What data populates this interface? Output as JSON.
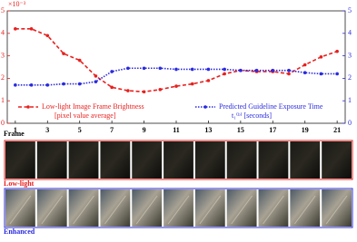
{
  "chart_data": {
    "type": "line",
    "xlabel": "Frame",
    "y_multiplier_label": "×10⁻³",
    "x": [
      1,
      2,
      3,
      4,
      5,
      6,
      7,
      8,
      9,
      10,
      11,
      12,
      13,
      14,
      15,
      16,
      17,
      18,
      19,
      20,
      21
    ],
    "xlim": [
      0.5,
      21.5
    ],
    "xticks": [
      1,
      3,
      5,
      7,
      9,
      11,
      13,
      15,
      17,
      19,
      21
    ],
    "ylim": [
      0,
      5
    ],
    "yticks": [
      0,
      1,
      2,
      3,
      4,
      5
    ],
    "y2lim": [
      0,
      5
    ],
    "y2ticks": [
      0,
      1,
      2,
      3,
      4,
      5
    ],
    "y_color": "#e8201e",
    "y2_color": "#2a2ae0",
    "series": [
      {
        "name": "Low-light Image Frame Brightness",
        "unit": "[pixel value average]",
        "color": "#e8201e",
        "dash": true,
        "values": [
          4.2,
          4.2,
          3.9,
          3.1,
          2.8,
          2.1,
          1.6,
          1.45,
          1.4,
          1.5,
          1.65,
          1.75,
          1.9,
          2.2,
          2.35,
          2.3,
          2.3,
          2.2,
          2.6,
          2.95,
          3.2
        ]
      },
      {
        "name": "Predicted Guideline Exposure Time",
        "unit": "t₁⁽ᵇ⁾ [seconds]",
        "color": "#2a2ae0",
        "dash": false,
        "axis": "y2",
        "values": [
          1.7,
          1.7,
          1.7,
          1.75,
          1.75,
          1.85,
          2.3,
          2.45,
          2.45,
          2.45,
          2.4,
          2.4,
          2.4,
          2.4,
          2.35,
          2.35,
          2.35,
          2.35,
          2.25,
          2.2,
          2.2
        ]
      }
    ]
  },
  "rows": [
    {
      "label": "Low-light",
      "color": "#e8201e"
    },
    {
      "label": "Enhanced",
      "color": "#2a2ae0"
    }
  ]
}
